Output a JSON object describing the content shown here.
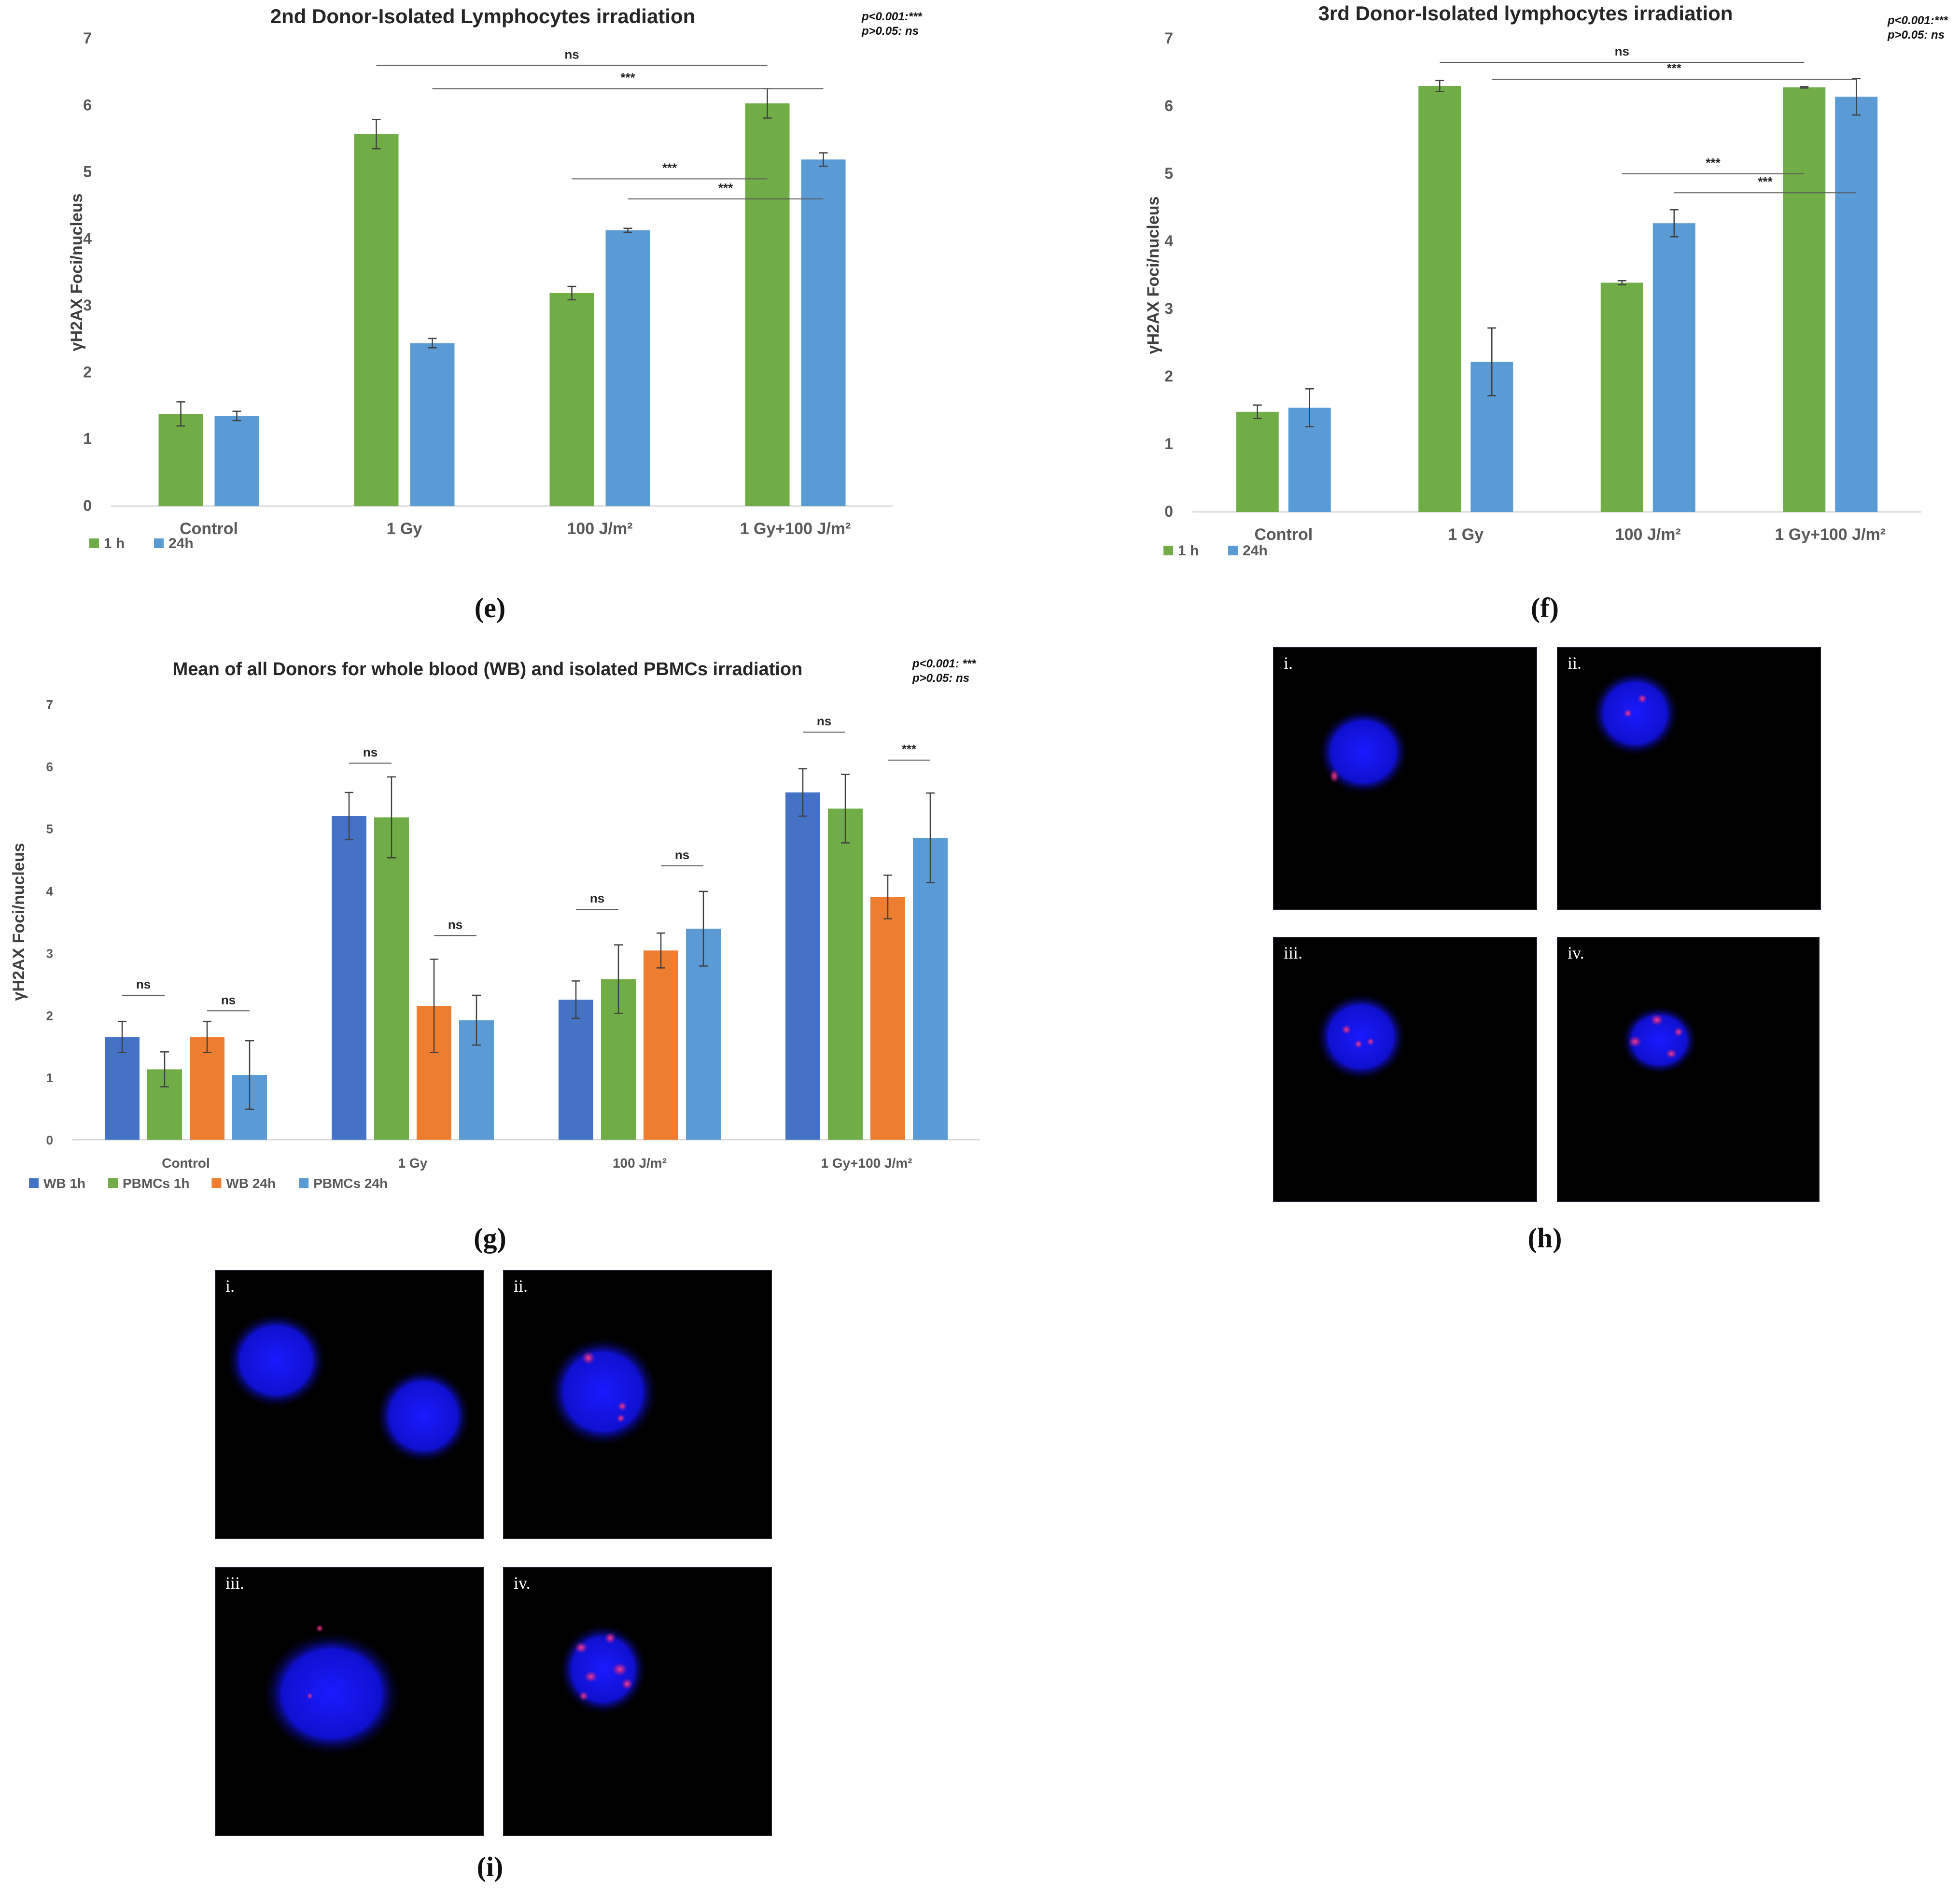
{
  "chart_data": [
    {
      "panel_label": "e",
      "type": "bar",
      "title": "2nd Donor-Isolated Lymphocytes irradiation",
      "xlabel": "",
      "ylabel": "γH2AX Foci/nucleus",
      "ylim": [
        0,
        7
      ],
      "yticks": [
        "0",
        "1",
        "2",
        "3",
        "4",
        "5",
        "6",
        "7"
      ],
      "categories": [
        "Control",
        "1 Gy",
        "100 J/m²",
        "1 Gy+100 J/m²"
      ],
      "series": [
        {
          "name": "1 h",
          "color": "#70ad47",
          "values": [
            1.38,
            5.57,
            3.19,
            6.03
          ],
          "errors": [
            0.18,
            0.22,
            0.1,
            0.22
          ]
        },
        {
          "name": "24h",
          "color": "#5b9bd5",
          "values": [
            1.35,
            2.44,
            4.13,
            5.19
          ],
          "errors": [
            0.07,
            0.07,
            0.03,
            0.1
          ]
        }
      ],
      "significance_note": [
        "p<0.001:***",
        "p>0.05: ns"
      ],
      "brackets": [
        {
          "label": "ns",
          "from": [
            1,
            0
          ],
          "to": [
            3,
            0
          ],
          "y": 6.6
        },
        {
          "label": "***",
          "from": [
            1,
            1
          ],
          "to": [
            3,
            1
          ],
          "y": 6.25
        },
        {
          "label": "***",
          "from": [
            2,
            0
          ],
          "to": [
            3,
            0
          ],
          "y": 4.9
        },
        {
          "label": "***",
          "from": [
            2,
            1
          ],
          "to": [
            3,
            1
          ],
          "y": 4.6
        }
      ],
      "legend_position": "bottom-left",
      "grid": false
    },
    {
      "panel_label": "f",
      "type": "bar",
      "title": "3rd Donor-Isolated lymphocytes irradiation",
      "xlabel": "",
      "ylabel": "γH2AX Foci/nucleus",
      "ylim": [
        0,
        7
      ],
      "yticks": [
        "0",
        "1",
        "2",
        "3",
        "4",
        "5",
        "6",
        "7"
      ],
      "categories": [
        "Control",
        "1 Gy",
        "100 J/m²",
        "1 Gy+100 J/m²"
      ],
      "series": [
        {
          "name": "1 h",
          "color": "#70ad47",
          "values": [
            1.48,
            6.3,
            3.39,
            6.28
          ],
          "errors": [
            0.1,
            0.08,
            0.03,
            0.01
          ]
        },
        {
          "name": "24h",
          "color": "#5b9bd5",
          "values": [
            1.54,
            2.22,
            4.27,
            6.14
          ],
          "errors": [
            0.28,
            0.5,
            0.2,
            0.27
          ]
        }
      ],
      "significance_note": [
        "p<0.001:***",
        "p>0.05: ns"
      ],
      "brackets": [
        {
          "label": "ns",
          "from": [
            1,
            0
          ],
          "to": [
            3,
            0
          ],
          "y": 6.65
        },
        {
          "label": "***",
          "from": [
            1,
            1
          ],
          "to": [
            3,
            1
          ],
          "y": 6.4
        },
        {
          "label": "***",
          "from": [
            2,
            0
          ],
          "to": [
            3,
            0
          ],
          "y": 5.0
        },
        {
          "label": "***",
          "from": [
            2,
            1
          ],
          "to": [
            3,
            1
          ],
          "y": 4.72
        }
      ],
      "legend_position": "bottom-left",
      "grid": false
    },
    {
      "panel_label": "g",
      "type": "bar",
      "title": "Mean of all Donors for whole blood (WB) and isolated PBMCs irradiation",
      "xlabel": "",
      "ylabel": "γH2AX Foci/nucleus",
      "ylim": [
        0,
        7
      ],
      "yticks": [
        "0",
        "1",
        "2",
        "3",
        "4",
        "5",
        "6",
        "7"
      ],
      "categories": [
        "Control",
        "1 Gy",
        "100 J/m²",
        "1 Gy+100 J/m²"
      ],
      "series": [
        {
          "name": "WB 1h",
          "color": "#4472c4",
          "values": [
            1.65,
            5.2,
            2.25,
            5.58
          ],
          "errors": [
            0.25,
            0.38,
            0.3,
            0.38
          ]
        },
        {
          "name": "PBMCs 1h",
          "color": "#70ad47",
          "values": [
            1.13,
            5.18,
            2.58,
            5.32
          ],
          "errors": [
            0.28,
            0.65,
            0.55,
            0.55
          ]
        },
        {
          "name": "WB 24h",
          "color": "#ed7d31",
          "values": [
            1.65,
            2.15,
            3.04,
            3.9
          ],
          "errors": [
            0.25,
            0.75,
            0.28,
            0.35
          ]
        },
        {
          "name": "PBMCs 24h",
          "color": "#5b9bd5",
          "values": [
            1.04,
            1.92,
            3.39,
            4.85
          ],
          "errors": [
            0.55,
            0.4,
            0.6,
            0.72
          ]
        }
      ],
      "significance_note": [
        "p<0.001: ***",
        "p>0.05: ns"
      ],
      "brackets": [
        {
          "label": "ns",
          "from": [
            0,
            0
          ],
          "to": [
            0,
            1
          ],
          "y": 2.32
        },
        {
          "label": "ns",
          "from": [
            0,
            2
          ],
          "to": [
            0,
            3
          ],
          "y": 2.07
        },
        {
          "label": "ns",
          "from": [
            1,
            0
          ],
          "to": [
            1,
            1
          ],
          "y": 6.05
        },
        {
          "label": "ns",
          "from": [
            1,
            2
          ],
          "to": [
            1,
            3
          ],
          "y": 3.28
        },
        {
          "label": "ns",
          "from": [
            2,
            0
          ],
          "to": [
            2,
            1
          ],
          "y": 3.7
        },
        {
          "label": "ns",
          "from": [
            2,
            2
          ],
          "to": [
            2,
            3
          ],
          "y": 4.4
        },
        {
          "label": "ns",
          "from": [
            3,
            0
          ],
          "to": [
            3,
            1
          ],
          "y": 6.55
        },
        {
          "label": "***",
          "from": [
            3,
            2
          ],
          "to": [
            3,
            3
          ],
          "y": 6.1
        }
      ],
      "legend_position": "bottom-left",
      "grid": false
    }
  ],
  "labels": {
    "e": "(e)",
    "f": "(f)",
    "g": "(g)",
    "h": "(h)",
    "i": "(i)"
  },
  "micrographs": {
    "h": [
      {
        "tag": "i."
      },
      {
        "tag": "ii."
      },
      {
        "tag": "iii."
      },
      {
        "tag": "iv."
      }
    ],
    "i": [
      {
        "tag": "i."
      },
      {
        "tag": "ii."
      },
      {
        "tag": "iii."
      },
      {
        "tag": "iv."
      }
    ]
  }
}
